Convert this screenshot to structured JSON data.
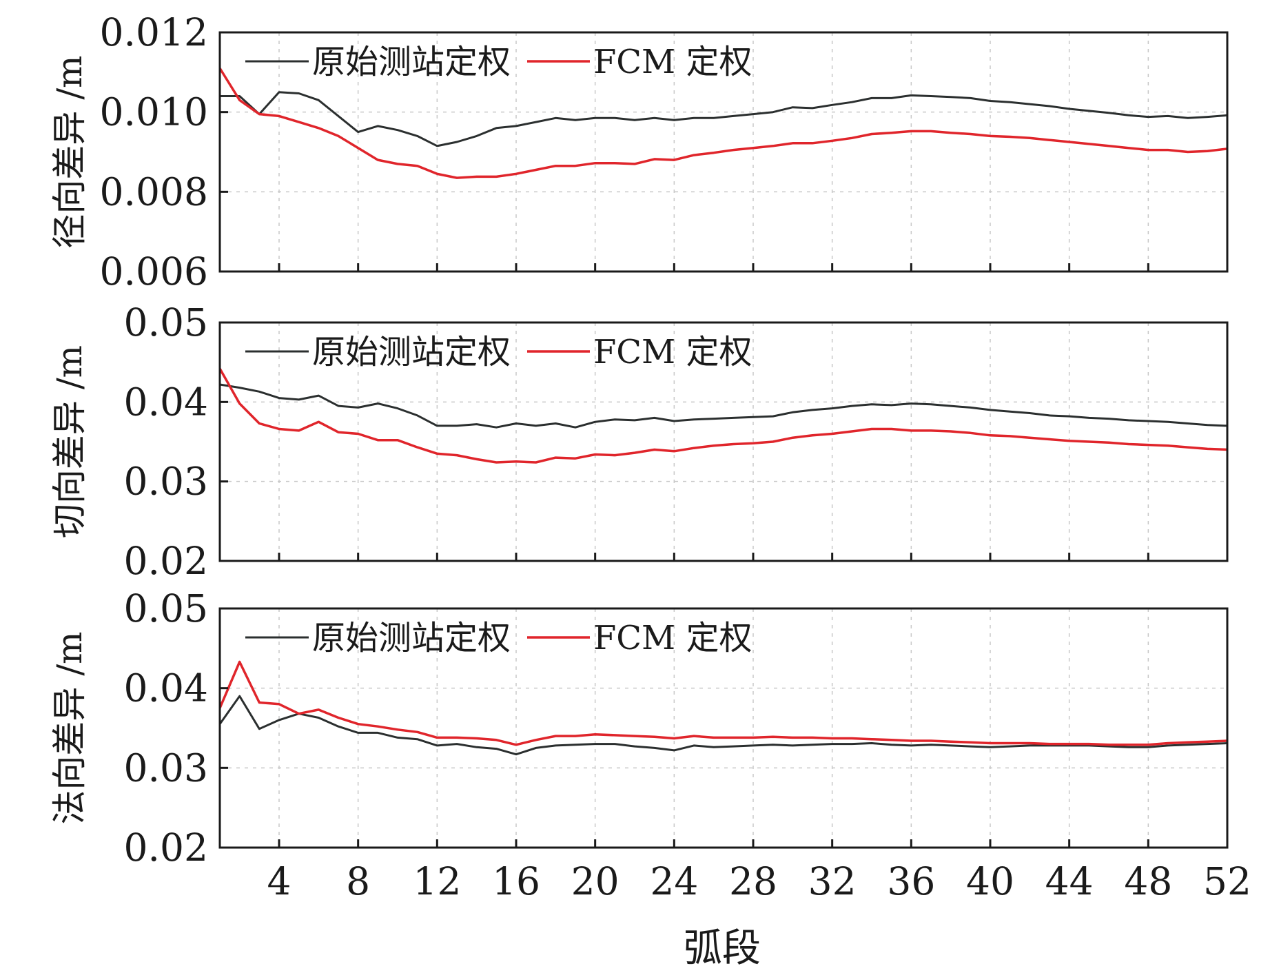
{
  "chart_data": [
    {
      "type": "line",
      "ylabel": "径向差异 /m",
      "ylim": [
        0.006,
        0.012
      ],
      "yticks": [
        "0.006",
        "0.008",
        "0.010",
        "0.012"
      ],
      "xlim": [
        1,
        52
      ],
      "xticks": [
        4,
        8,
        12,
        16,
        20,
        24,
        28,
        32,
        36,
        40,
        44,
        48,
        52
      ],
      "grid": true,
      "legend_position": "top-left",
      "series": [
        {
          "name": "原始测站定权",
          "color": "#2b2f2f",
          "x": [
            1,
            2,
            3,
            4,
            5,
            6,
            7,
            8,
            9,
            10,
            11,
            12,
            13,
            14,
            15,
            16,
            17,
            18,
            19,
            20,
            21,
            22,
            23,
            24,
            25,
            26,
            27,
            28,
            29,
            30,
            31,
            32,
            33,
            34,
            35,
            36,
            37,
            38,
            39,
            40,
            41,
            42,
            43,
            44,
            45,
            46,
            47,
            48,
            49,
            50,
            51,
            52
          ],
          "values": [
            0.0104,
            0.0104,
            0.00995,
            0.0105,
            0.01047,
            0.0103,
            0.0099,
            0.0095,
            0.00965,
            0.00955,
            0.0094,
            0.00915,
            0.00925,
            0.0094,
            0.0096,
            0.00965,
            0.00975,
            0.00985,
            0.0098,
            0.00985,
            0.00985,
            0.0098,
            0.00985,
            0.0098,
            0.00985,
            0.00985,
            0.0099,
            0.00995,
            0.01,
            0.01012,
            0.0101,
            0.01018,
            0.01025,
            0.01035,
            0.01035,
            0.01042,
            0.0104,
            0.01038,
            0.01035,
            0.01028,
            0.01025,
            0.0102,
            0.01015,
            0.01008,
            0.01003,
            0.00998,
            0.00992,
            0.00988,
            0.0099,
            0.00985,
            0.00988,
            0.00992
          ]
        },
        {
          "name": "FCM 定权",
          "color": "#e0252b",
          "x": [
            1,
            2,
            3,
            4,
            5,
            6,
            7,
            8,
            9,
            10,
            11,
            12,
            13,
            14,
            15,
            16,
            17,
            18,
            19,
            20,
            21,
            22,
            23,
            24,
            25,
            26,
            27,
            28,
            29,
            30,
            31,
            32,
            33,
            34,
            35,
            36,
            37,
            38,
            39,
            40,
            41,
            42,
            43,
            44,
            45,
            46,
            47,
            48,
            49,
            50,
            51,
            52
          ],
          "values": [
            0.0111,
            0.0103,
            0.00995,
            0.0099,
            0.00975,
            0.0096,
            0.0094,
            0.0091,
            0.0088,
            0.0087,
            0.00865,
            0.00845,
            0.00835,
            0.00838,
            0.00838,
            0.00845,
            0.00855,
            0.00865,
            0.00865,
            0.00872,
            0.00872,
            0.0087,
            0.00882,
            0.0088,
            0.00892,
            0.00898,
            0.00905,
            0.0091,
            0.00915,
            0.00922,
            0.00922,
            0.00928,
            0.00935,
            0.00945,
            0.00948,
            0.00952,
            0.00952,
            0.00948,
            0.00945,
            0.0094,
            0.00938,
            0.00935,
            0.0093,
            0.00925,
            0.0092,
            0.00915,
            0.0091,
            0.00905,
            0.00905,
            0.009,
            0.00902,
            0.00908
          ]
        }
      ]
    },
    {
      "type": "line",
      "ylabel": "切向差异 /m",
      "ylim": [
        0.02,
        0.05
      ],
      "yticks": [
        "0.02",
        "0.03",
        "0.04",
        "0.05"
      ],
      "xlim": [
        1,
        52
      ],
      "xticks": [
        4,
        8,
        12,
        16,
        20,
        24,
        28,
        32,
        36,
        40,
        44,
        48,
        52
      ],
      "grid": true,
      "legend_position": "top-left",
      "series": [
        {
          "name": "原始测站定权",
          "color": "#2b2f2f",
          "x": [
            1,
            2,
            3,
            4,
            5,
            6,
            7,
            8,
            9,
            10,
            11,
            12,
            13,
            14,
            15,
            16,
            17,
            18,
            19,
            20,
            21,
            22,
            23,
            24,
            25,
            26,
            27,
            28,
            29,
            30,
            31,
            32,
            33,
            34,
            35,
            36,
            37,
            38,
            39,
            40,
            41,
            42,
            43,
            44,
            45,
            46,
            47,
            48,
            49,
            50,
            51,
            52
          ],
          "values": [
            0.0422,
            0.0418,
            0.0413,
            0.0405,
            0.0403,
            0.0408,
            0.0395,
            0.0393,
            0.0398,
            0.0392,
            0.0383,
            0.037,
            0.037,
            0.0372,
            0.0368,
            0.0373,
            0.037,
            0.0373,
            0.0368,
            0.0375,
            0.0378,
            0.0377,
            0.038,
            0.0376,
            0.0378,
            0.0379,
            0.038,
            0.0381,
            0.0382,
            0.0387,
            0.039,
            0.0392,
            0.0395,
            0.0397,
            0.0396,
            0.0398,
            0.0397,
            0.0395,
            0.0393,
            0.039,
            0.0388,
            0.0386,
            0.0383,
            0.0382,
            0.038,
            0.0379,
            0.0377,
            0.0376,
            0.0375,
            0.0373,
            0.0371,
            0.037
          ]
        },
        {
          "name": "FCM 定权",
          "color": "#e0252b",
          "x": [
            1,
            2,
            3,
            4,
            5,
            6,
            7,
            8,
            9,
            10,
            11,
            12,
            13,
            14,
            15,
            16,
            17,
            18,
            19,
            20,
            21,
            22,
            23,
            24,
            25,
            26,
            27,
            28,
            29,
            30,
            31,
            32,
            33,
            34,
            35,
            36,
            37,
            38,
            39,
            40,
            41,
            42,
            43,
            44,
            45,
            46,
            47,
            48,
            49,
            50,
            51,
            52
          ],
          "values": [
            0.0442,
            0.0398,
            0.0373,
            0.0366,
            0.0364,
            0.0375,
            0.0362,
            0.036,
            0.0352,
            0.0352,
            0.0343,
            0.0335,
            0.0333,
            0.0328,
            0.0324,
            0.0325,
            0.0324,
            0.033,
            0.0329,
            0.0334,
            0.0333,
            0.0336,
            0.034,
            0.0338,
            0.0342,
            0.0345,
            0.0347,
            0.0348,
            0.035,
            0.0355,
            0.0358,
            0.036,
            0.0363,
            0.0366,
            0.0366,
            0.0364,
            0.0364,
            0.0363,
            0.0361,
            0.0358,
            0.0357,
            0.0355,
            0.0353,
            0.0351,
            0.035,
            0.0349,
            0.0347,
            0.0346,
            0.0345,
            0.0343,
            0.0341,
            0.034
          ]
        }
      ]
    },
    {
      "type": "line",
      "ylabel": "法向差异 /m",
      "xlabel": "弧段",
      "ylim": [
        0.02,
        0.05
      ],
      "yticks": [
        "0.02",
        "0.03",
        "0.04",
        "0.05"
      ],
      "xlim": [
        1,
        52
      ],
      "xticks": [
        4,
        8,
        12,
        16,
        20,
        24,
        28,
        32,
        36,
        40,
        44,
        48,
        52
      ],
      "grid": true,
      "legend_position": "top-left",
      "series": [
        {
          "name": "原始测站定权",
          "color": "#2b2f2f",
          "x": [
            1,
            2,
            3,
            4,
            5,
            6,
            7,
            8,
            9,
            10,
            11,
            12,
            13,
            14,
            15,
            16,
            17,
            18,
            19,
            20,
            21,
            22,
            23,
            24,
            25,
            26,
            27,
            28,
            29,
            30,
            31,
            32,
            33,
            34,
            35,
            36,
            37,
            38,
            39,
            40,
            41,
            42,
            43,
            44,
            45,
            46,
            47,
            48,
            49,
            50,
            51,
            52
          ],
          "values": [
            0.0355,
            0.039,
            0.0349,
            0.036,
            0.0368,
            0.0363,
            0.0352,
            0.0344,
            0.0344,
            0.0338,
            0.0336,
            0.0328,
            0.033,
            0.0326,
            0.0324,
            0.0317,
            0.0325,
            0.0328,
            0.0329,
            0.033,
            0.033,
            0.0327,
            0.0325,
            0.0322,
            0.0328,
            0.0326,
            0.0327,
            0.0328,
            0.0329,
            0.0328,
            0.0329,
            0.033,
            0.033,
            0.0331,
            0.0329,
            0.0328,
            0.0329,
            0.0328,
            0.0327,
            0.0326,
            0.0327,
            0.0328,
            0.0328,
            0.0328,
            0.0328,
            0.0327,
            0.0326,
            0.0326,
            0.0328,
            0.0329,
            0.033,
            0.0331
          ]
        },
        {
          "name": "FCM 定权",
          "color": "#e0252b",
          "x": [
            1,
            2,
            3,
            4,
            5,
            6,
            7,
            8,
            9,
            10,
            11,
            12,
            13,
            14,
            15,
            16,
            17,
            18,
            19,
            20,
            21,
            22,
            23,
            24,
            25,
            26,
            27,
            28,
            29,
            30,
            31,
            32,
            33,
            34,
            35,
            36,
            37,
            38,
            39,
            40,
            41,
            42,
            43,
            44,
            45,
            46,
            47,
            48,
            49,
            50,
            51,
            52
          ],
          "values": [
            0.0375,
            0.0433,
            0.0382,
            0.038,
            0.0368,
            0.0373,
            0.0363,
            0.0355,
            0.0352,
            0.0348,
            0.0345,
            0.0338,
            0.0338,
            0.0337,
            0.0335,
            0.0329,
            0.0335,
            0.034,
            0.034,
            0.0342,
            0.0341,
            0.034,
            0.0339,
            0.0337,
            0.034,
            0.0338,
            0.0338,
            0.0338,
            0.0339,
            0.0338,
            0.0338,
            0.0337,
            0.0337,
            0.0336,
            0.0335,
            0.0334,
            0.0334,
            0.0333,
            0.0332,
            0.0331,
            0.0331,
            0.0331,
            0.033,
            0.033,
            0.033,
            0.0329,
            0.0329,
            0.0329,
            0.0331,
            0.0332,
            0.0333,
            0.0334
          ]
        }
      ]
    }
  ]
}
